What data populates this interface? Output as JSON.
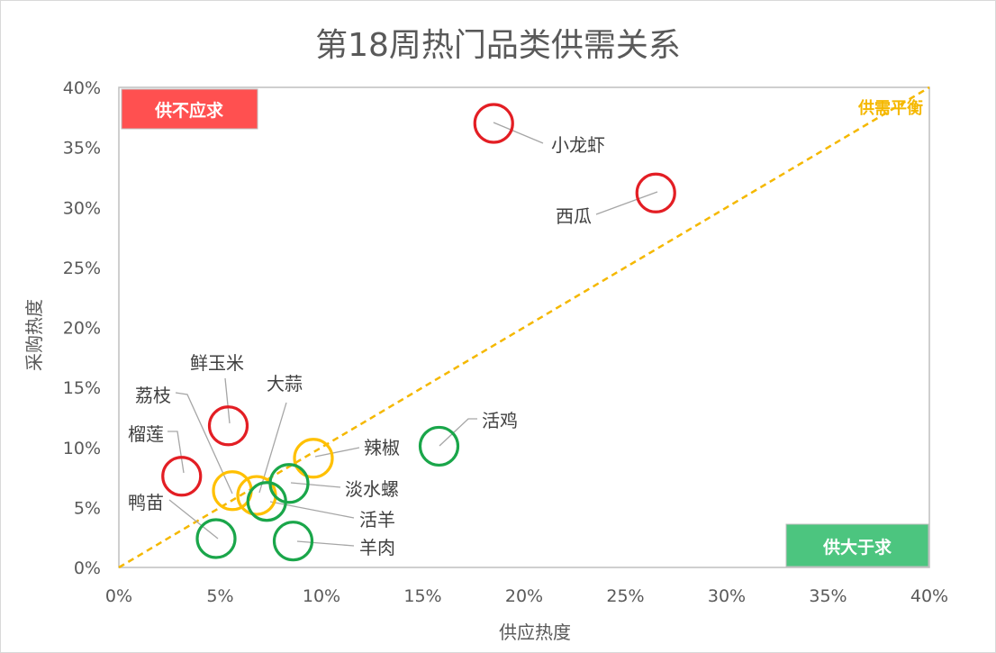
{
  "chart_data": {
    "type": "scatter",
    "title": "第18周热门品类供需关系",
    "xlabel": "供应热度",
    "ylabel": "采购热度",
    "xlim": [
      0,
      0.4
    ],
    "ylim": [
      0,
      0.4
    ],
    "x_ticks": [
      "0%",
      "5%",
      "10%",
      "15%",
      "20%",
      "25%",
      "30%",
      "35%",
      "40%"
    ],
    "y_ticks": [
      "0%",
      "5%",
      "10%",
      "15%",
      "20%",
      "25%",
      "30%",
      "35%",
      "40%"
    ],
    "grid": false,
    "reference_line": {
      "label": "供需平衡",
      "from": [
        0,
        0
      ],
      "to": [
        0.4,
        0.4
      ],
      "style": "dashed",
      "color": "#f5b800"
    },
    "quadrant_labels": [
      {
        "text": "供不应求",
        "position": "top-left",
        "color": "#ff5050"
      },
      {
        "text": "供大于求",
        "position": "bottom-right",
        "color": "#4cc57f"
      }
    ],
    "colors": {
      "demand_exceeds": "#e31e24",
      "balanced": "#ffc000",
      "supply_exceeds": "#1aa64a"
    },
    "points": [
      {
        "name": "小龙虾",
        "x": 0.185,
        "y": 0.37,
        "group": "demand_exceeds"
      },
      {
        "name": "西瓜",
        "x": 0.265,
        "y": 0.312,
        "group": "demand_exceeds"
      },
      {
        "name": "鲜玉米",
        "x": 0.054,
        "y": 0.118,
        "group": "demand_exceeds"
      },
      {
        "name": "榴莲",
        "x": 0.031,
        "y": 0.076,
        "group": "demand_exceeds"
      },
      {
        "name": "荔枝",
        "x": 0.056,
        "y": 0.064,
        "group": "balanced"
      },
      {
        "name": "大蒜",
        "x": 0.068,
        "y": 0.06,
        "group": "balanced"
      },
      {
        "name": "辣椒",
        "x": 0.096,
        "y": 0.091,
        "group": "balanced"
      },
      {
        "name": "活鸡",
        "x": 0.158,
        "y": 0.101,
        "group": "supply_exceeds"
      },
      {
        "name": "淡水螺",
        "x": 0.084,
        "y": 0.07,
        "group": "supply_exceeds"
      },
      {
        "name": "活羊",
        "x": 0.073,
        "y": 0.055,
        "group": "supply_exceeds"
      },
      {
        "name": "鸭苗",
        "x": 0.048,
        "y": 0.024,
        "group": "supply_exceeds"
      },
      {
        "name": "羊肉",
        "x": 0.086,
        "y": 0.022,
        "group": "supply_exceeds"
      }
    ]
  }
}
